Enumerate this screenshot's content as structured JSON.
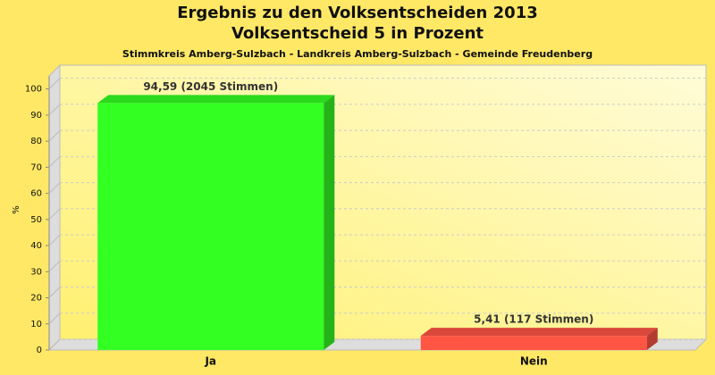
{
  "chart_data": {
    "type": "bar3d",
    "title": "Ergebnis zu den Volksentscheiden 2013",
    "subtitle": "Volksentscheid 5 in Prozent",
    "caption": "Stimmkreis Amberg-Sulzbach - Landkreis Amberg-Sulzbach - Gemeinde Freudenberg",
    "y_label": "%",
    "categories": [
      "Ja",
      "Nein"
    ],
    "values": [
      94.59,
      5.41
    ],
    "value_labels": [
      "94,59 (2045 Stimmen)",
      "5,41 (117 Stimmen)"
    ],
    "colors": [
      "#33ff22",
      "#ff5544"
    ],
    "ylim": [
      0,
      105
    ],
    "yticks": [
      0,
      10,
      20,
      30,
      40,
      50,
      60,
      70,
      80,
      90,
      100
    ],
    "grid": true
  }
}
